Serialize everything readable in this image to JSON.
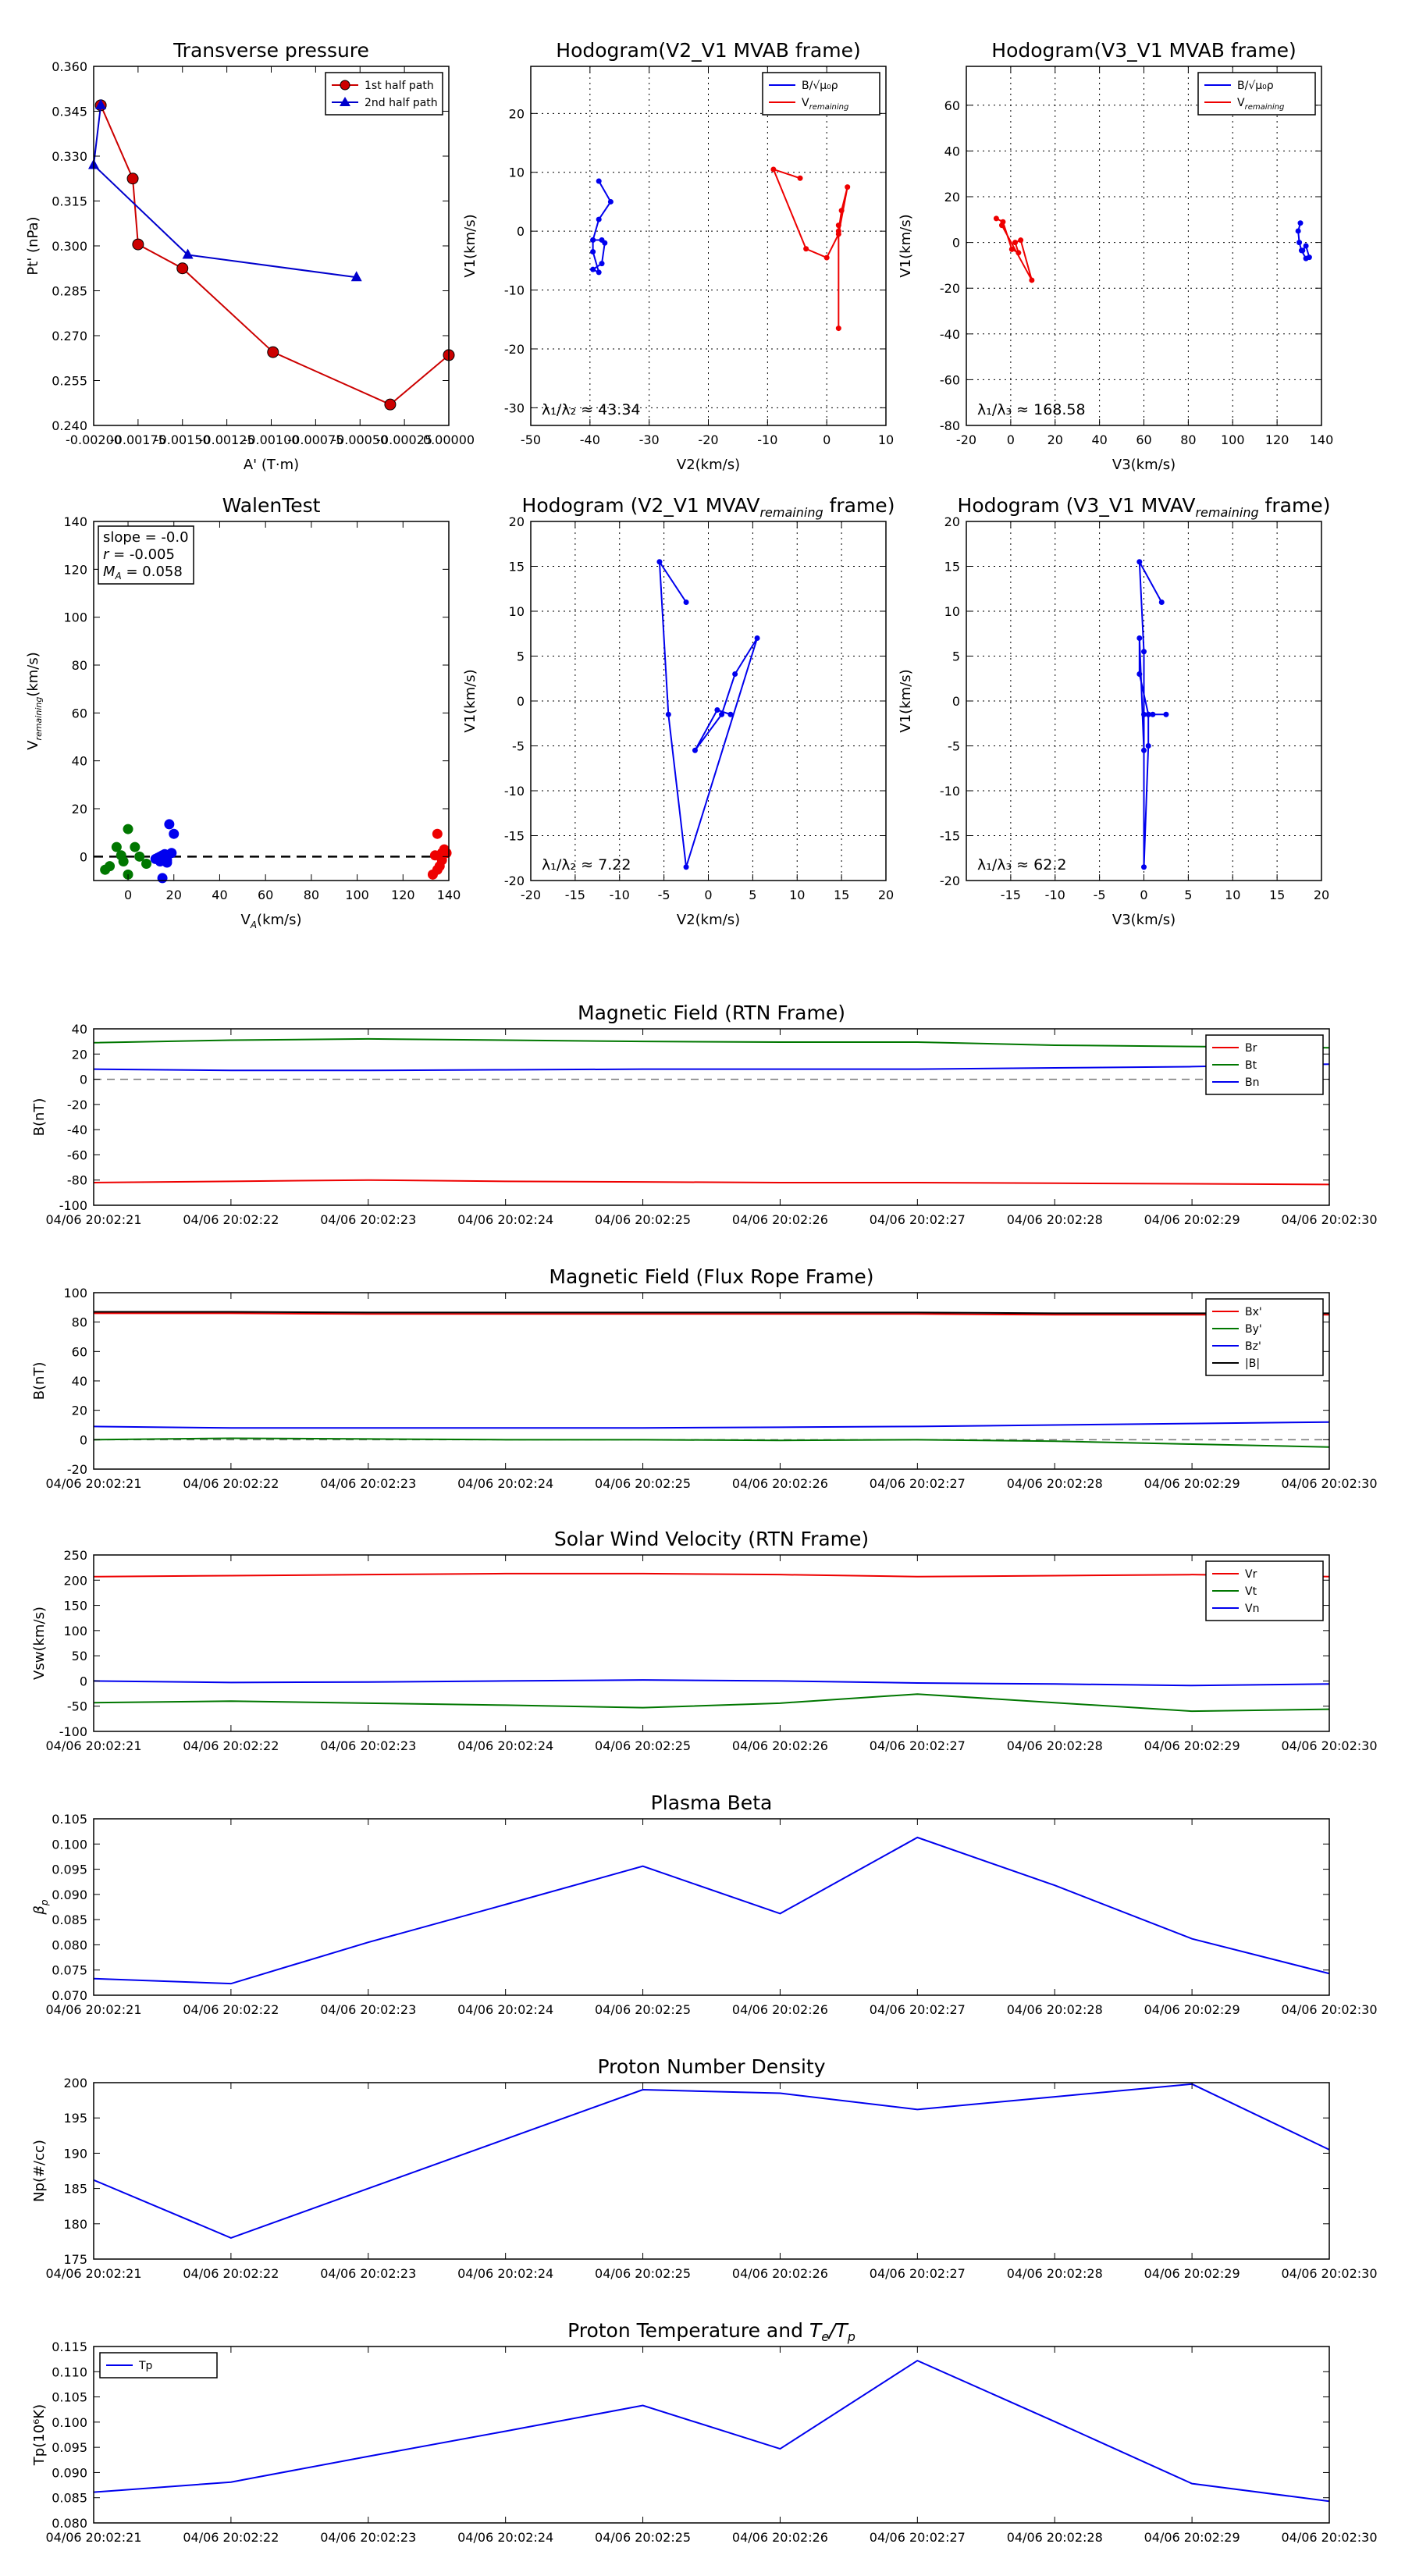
{
  "chart_data": [
    {
      "id": "tp",
      "type": "scatter",
      "title": "Transverse pressure",
      "xlabel": "A' (T·m)",
      "ylabel": "Pt' (nPa)",
      "xlim": [
        -0.002,
        0.0
      ],
      "ylim": [
        0.24,
        0.36
      ],
      "xticks": [
        -0.002,
        -0.00175,
        -0.0015,
        -0.00125,
        -0.001,
        -0.00075,
        -0.0005,
        -0.00025,
        0.0
      ],
      "xtick_labels": [
        "-0.00200",
        "-0.00175",
        "-0.00150",
        "-0.00125",
        "-0.00100",
        "-0.00075",
        "-0.00050",
        "-0.00025",
        "0.00000"
      ],
      "yticks": [
        0.24,
        0.255,
        0.27,
        0.285,
        0.3,
        0.315,
        0.33,
        0.345,
        0.36
      ],
      "ytick_labels": [
        "0.240",
        "0.255",
        "0.270",
        "0.285",
        "0.300",
        "0.315",
        "0.330",
        "0.345",
        "0.360"
      ],
      "legend": "top-right",
      "series": [
        {
          "name": "1st half path",
          "color": "#cc0000",
          "marker": "circle",
          "x": [
            -0.00196,
            -0.00178,
            -0.00175,
            -0.0015,
            -0.00099,
            -0.00033,
            0.0
          ],
          "y": [
            0.347,
            0.3225,
            0.3005,
            0.2925,
            0.2645,
            0.247,
            0.2635
          ]
        },
        {
          "name": "2nd half path",
          "color": "#0000cc",
          "marker": "triangle",
          "x": [
            -0.00196,
            -0.002,
            -0.00147,
            -0.00052
          ],
          "y": [
            0.347,
            0.327,
            0.297,
            0.2895
          ]
        }
      ]
    },
    {
      "id": "hv2b",
      "type": "line",
      "title": "Hodogram(V2_V1 MVAB frame)",
      "xlabel": "V2(km/s)",
      "ylabel": "V1(km/s)",
      "xlim": [
        -50,
        10
      ],
      "ylim": [
        -33,
        28
      ],
      "xticks": [
        -50,
        -40,
        -30,
        -20,
        -10,
        0,
        10
      ],
      "yticks": [
        -30,
        -20,
        -10,
        0,
        10,
        20
      ],
      "annotation": "λ₁/λ₂ ≈ 43.34",
      "legend": "top-right",
      "series": [
        {
          "name": "B/√μ₀ρ",
          "color": "#0000ee",
          "x": [
            -38.5,
            -36.5,
            -38.5,
            -39.5,
            -39.5,
            -38.5,
            -39.5,
            -38.0,
            -37.5,
            -38.0,
            -39.5
          ],
          "y": [
            8.5,
            5.0,
            2.0,
            -1.5,
            -3.5,
            -7.0,
            -6.5,
            -5.5,
            -2.0,
            -1.5,
            -1.5
          ]
        },
        {
          "name": "V_remaining",
          "color": "#ee0000",
          "x": [
            -4.5,
            -9.0,
            -3.5,
            0.0,
            2.0,
            3.5,
            2.5,
            2.0,
            2.0,
            2.0
          ],
          "y": [
            9.0,
            10.5,
            -3.0,
            -4.5,
            -0.5,
            7.5,
            3.5,
            0.0,
            1.0,
            -16.5
          ]
        }
      ]
    },
    {
      "id": "hv3b",
      "type": "line",
      "title": "Hodogram(V3_V1 MVAB frame)",
      "xlabel": "V3(km/s)",
      "ylabel": "V1(km/s)",
      "xlim": [
        -20,
        140
      ],
      "ylim": [
        -80,
        77
      ],
      "xticks": [
        -20,
        0,
        20,
        40,
        60,
        80,
        100,
        120,
        140
      ],
      "yticks": [
        -80,
        -60,
        -40,
        -20,
        0,
        20,
        40,
        60
      ],
      "annotation": "λ₁/λ₃ ≈ 168.58",
      "legend": "top-right",
      "series": [
        {
          "name": "B/√μ₀ρ",
          "color": "#0000ee",
          "x": [
            130.5,
            129.5,
            130.0,
            131.0,
            133.0,
            134.5,
            133.0,
            131.5
          ],
          "y": [
            8.5,
            5.0,
            0.0,
            -3.5,
            -7.0,
            -6.5,
            -1.5,
            -3.5
          ]
        },
        {
          "name": "V_remaining",
          "color": "#ee0000",
          "x": [
            -6.5,
            -3.5,
            0.5,
            3.5,
            2.0,
            4.5,
            9.5,
            -4.0
          ],
          "y": [
            10.5,
            9.0,
            -3.0,
            -4.5,
            0.0,
            1.0,
            -16.5,
            7.5
          ]
        }
      ]
    },
    {
      "id": "walen",
      "type": "scatter",
      "title": "WalenTest",
      "xlabel": "V_A(km/s)",
      "ylabel": "V_remaining(km/s)",
      "xlim": [
        -15,
        140
      ],
      "ylim": [
        -10,
        140
      ],
      "xticks": [
        0,
        20,
        40,
        60,
        80,
        100,
        120,
        140
      ],
      "yticks": [
        0,
        20,
        40,
        60,
        80,
        100,
        120,
        140
      ],
      "stats": [
        "slope = -0.0",
        "r = -0.005",
        "M_A = 0.058"
      ],
      "series": [
        {
          "name": "green",
          "color": "#007700",
          "x": [
            -10.0,
            -8.0,
            -5.0,
            0.0,
            3.0,
            -2.0,
            0.0,
            -3.0,
            5.0,
            8.0
          ],
          "y": [
            -5.5,
            -4.0,
            4.0,
            11.5,
            4.0,
            -2.0,
            -7.5,
            0.5,
            0.0,
            -3.0
          ]
        },
        {
          "name": "blue",
          "color": "#0000ee",
          "x": [
            12.0,
            14.0,
            15.0,
            16.0,
            18.0,
            20.0,
            17.0,
            19.0,
            13.0,
            15.0,
            17.0,
            14.0
          ],
          "y": [
            -1.0,
            -2.0,
            0.5,
            1.0,
            13.5,
            9.5,
            -1.5,
            1.5,
            -0.5,
            -9.0,
            -2.5,
            0.0
          ]
        },
        {
          "name": "red",
          "color": "#ee0000",
          "x": [
            133.0,
            134.0,
            135.0,
            136.0,
            137.0,
            138.0,
            139.0,
            135.0,
            137.0
          ],
          "y": [
            -7.5,
            0.5,
            9.5,
            -4.0,
            1.5,
            3.0,
            1.5,
            -5.5,
            -1.5
          ]
        }
      ]
    },
    {
      "id": "hv2v",
      "type": "line",
      "title": "Hodogram (V2_V1 MVAV_remaining frame)",
      "xlabel": "V2(km/s)",
      "ylabel": "V1(km/s)",
      "xlim": [
        -20,
        20
      ],
      "ylim": [
        -20,
        20
      ],
      "xticks": [
        -20,
        -15,
        -10,
        -5,
        0,
        5,
        10,
        15,
        20
      ],
      "yticks": [
        -20,
        -15,
        -10,
        -5,
        0,
        5,
        10,
        15,
        20
      ],
      "annotation": "λ₁/λ₂ ≈ 7.22",
      "series": [
        {
          "name": "",
          "color": "#0000ee",
          "x": [
            -2.5,
            -5.5,
            -4.5,
            -2.5,
            5.5,
            3.0,
            1.5,
            -1.5,
            1.0,
            2.5
          ],
          "y": [
            11.0,
            15.5,
            -1.5,
            -18.5,
            7.0,
            3.0,
            -1.5,
            -5.5,
            -1.0,
            -1.5
          ]
        }
      ]
    },
    {
      "id": "hv3v",
      "type": "line",
      "title": "Hodogram (V3_V1 MVAV_remaining frame)",
      "xlabel": "V3(km/s)",
      "ylabel": "V1(km/s)",
      "xlim": [
        -20,
        20
      ],
      "ylim": [
        -20,
        20
      ],
      "xticks": [
        -15,
        -10,
        -5,
        0,
        5,
        10,
        15,
        20
      ],
      "yticks": [
        -20,
        -15,
        -10,
        -5,
        0,
        5,
        10,
        15,
        20
      ],
      "annotation": "λ₁/λ₃ ≈ 62.2",
      "series": [
        {
          "name": "",
          "color": "#0000ee",
          "x": [
            2.0,
            -0.5,
            0.0,
            0.0,
            -0.5,
            -0.5,
            0.5,
            0.5,
            0.0,
            0.0,
            0.5,
            1.0,
            2.5
          ],
          "y": [
            11.0,
            15.5,
            5.5,
            -5.5,
            7.0,
            3.0,
            -1.5,
            -5.0,
            -18.5,
            -1.5,
            -1.5,
            -1.5,
            -1.5
          ]
        }
      ]
    },
    {
      "id": "bfield",
      "type": "line",
      "title": "Magnetic Field (RTN Frame)",
      "ylabel": "B(nT)",
      "ylim": [
        -100,
        40
      ],
      "yticks": [
        -100,
        -80,
        -60,
        -40,
        -20,
        0,
        20,
        40
      ],
      "xticklabels": [
        "04/06 20:02:21",
        "04/06 20:02:22",
        "04/06 20:02:23",
        "04/06 20:02:24",
        "04/06 20:02:25",
        "04/06 20:02:26",
        "04/06 20:02:27",
        "04/06 20:02:28",
        "04/06 20:02:29",
        "04/06 20:02:30"
      ],
      "zero_line": true,
      "legend": "top-right",
      "series": [
        {
          "name": "Br",
          "color": "#ee0000",
          "values": [
            -82,
            -81,
            -80,
            -81,
            -81.5,
            -82,
            -82,
            -82.5,
            -83,
            -83.5
          ]
        },
        {
          "name": "Bt",
          "color": "#007700",
          "values": [
            29,
            31,
            32,
            31,
            30,
            29.5,
            29.5,
            27,
            26,
            25
          ]
        },
        {
          "name": "Bn",
          "color": "#0000ee",
          "values": [
            8,
            7,
            7,
            7.5,
            8,
            8,
            8,
            9,
            10,
            12
          ]
        }
      ]
    },
    {
      "id": "bflux",
      "type": "line",
      "title": "Magnetic Field (Flux Rope Frame)",
      "ylabel": "B(nT)",
      "ylim": [
        -20,
        100
      ],
      "yticks": [
        -20,
        0,
        20,
        40,
        60,
        80,
        100
      ],
      "xticklabels": [
        "04/06 20:02:21",
        "04/06 20:02:22",
        "04/06 20:02:23",
        "04/06 20:02:24",
        "04/06 20:02:25",
        "04/06 20:02:26",
        "04/06 20:02:27",
        "04/06 20:02:28",
        "04/06 20:02:29",
        "04/06 20:02:30"
      ],
      "zero_line": true,
      "legend": "top-right",
      "series": [
        {
          "name": "Bx'",
          "color": "#ee0000",
          "values": [
            86,
            86,
            85.5,
            85.5,
            85.5,
            85.5,
            85.5,
            85,
            85,
            85
          ]
        },
        {
          "name": "By'",
          "color": "#007700",
          "values": [
            0,
            1,
            0.5,
            0,
            0,
            -0.5,
            0,
            -1,
            -3,
            -5
          ]
        },
        {
          "name": "Bz'",
          "color": "#0000ee",
          "values": [
            9,
            8,
            8,
            8,
            8,
            8.5,
            9,
            10,
            11,
            12
          ]
        },
        {
          "name": "|B|",
          "color": "#000000",
          "values": [
            87,
            87,
            86.5,
            86.5,
            86.5,
            86.5,
            86.5,
            86,
            86,
            86
          ]
        }
      ]
    },
    {
      "id": "vsw",
      "type": "line",
      "title": "Solar Wind Velocity (RTN Frame)",
      "ylabel": "Vsw(km/s)",
      "ylim": [
        -100,
        250
      ],
      "yticks": [
        -100,
        -50,
        0,
        50,
        100,
        150,
        200,
        250
      ],
      "xticklabels": [
        "04/06 20:02:21",
        "04/06 20:02:22",
        "04/06 20:02:23",
        "04/06 20:02:24",
        "04/06 20:02:25",
        "04/06 20:02:26",
        "04/06 20:02:27",
        "04/06 20:02:28",
        "04/06 20:02:29",
        "04/06 20:02:30"
      ],
      "legend": "top-right",
      "series": [
        {
          "name": "Vr",
          "color": "#ee0000",
          "values": [
            207,
            209,
            211,
            213,
            213,
            211,
            207,
            209,
            211,
            207
          ]
        },
        {
          "name": "Vt",
          "color": "#007700",
          "values": [
            -43,
            -40,
            -44,
            -48,
            -53,
            -44,
            -26,
            -43,
            -60,
            -56
          ]
        },
        {
          "name": "Vn",
          "color": "#0000ee",
          "values": [
            0,
            -3,
            -2,
            0,
            2,
            0,
            -4,
            -6,
            -9,
            -6
          ]
        }
      ]
    },
    {
      "id": "beta",
      "type": "line",
      "title": "Plasma Beta",
      "ylabel": "β_p",
      "ylim": [
        0.07,
        0.105
      ],
      "yticks": [
        0.07,
        0.075,
        0.08,
        0.085,
        0.09,
        0.095,
        0.1,
        0.105
      ],
      "ytick_labels": [
        "0.070",
        "0.075",
        "0.080",
        "0.085",
        "0.090",
        "0.095",
        "0.100",
        "0.105"
      ],
      "xticklabels": [
        "04/06 20:02:21",
        "04/06 20:02:22",
        "04/06 20:02:23",
        "04/06 20:02:24",
        "04/06 20:02:25",
        "04/06 20:02:26",
        "04/06 20:02:27",
        "04/06 20:02:28",
        "04/06 20:02:29",
        "04/06 20:02:30"
      ],
      "series": [
        {
          "name": "",
          "color": "#0000ee",
          "values": [
            0.0733,
            0.0723,
            0.0805,
            0.088,
            0.0956,
            0.0862,
            0.1013,
            0.0918,
            0.0812,
            0.0743
          ]
        }
      ]
    },
    {
      "id": "np",
      "type": "line",
      "title": "Proton Number Density",
      "ylabel": "Np(#/cc)",
      "ylim": [
        175,
        200
      ],
      "yticks": [
        175,
        180,
        185,
        190,
        195,
        200
      ],
      "xticklabels": [
        "04/06 20:02:21",
        "04/06 20:02:22",
        "04/06 20:02:23",
        "04/06 20:02:24",
        "04/06 20:02:25",
        "04/06 20:02:26",
        "04/06 20:02:27",
        "04/06 20:02:28",
        "04/06 20:02:29",
        "04/06 20:02:30"
      ],
      "series": [
        {
          "name": "",
          "color": "#0000ee",
          "values": [
            186.2,
            178.0,
            185.0,
            192.0,
            199.0,
            198.5,
            196.2,
            198.0,
            199.8,
            190.5
          ]
        }
      ]
    },
    {
      "id": "tpr",
      "type": "line",
      "title": "Proton Temperature and T_e/T_p",
      "ylabel": "Tp(10⁶K)",
      "ylim": [
        0.08,
        0.115
      ],
      "yticks": [
        0.08,
        0.085,
        0.09,
        0.095,
        0.1,
        0.105,
        0.11,
        0.115
      ],
      "ytick_labels": [
        "0.080",
        "0.085",
        "0.090",
        "0.095",
        "0.100",
        "0.105",
        "0.110",
        "0.115"
      ],
      "xticklabels": [
        "04/06 20:02:21",
        "04/06 20:02:22",
        "04/06 20:02:23",
        "04/06 20:02:24",
        "04/06 20:02:25",
        "04/06 20:02:26",
        "04/06 20:02:27",
        "04/06 20:02:28",
        "04/06 20:02:29",
        "04/06 20:02:30"
      ],
      "legend": "top-left",
      "series": [
        {
          "name": "Tp",
          "color": "#0000ee",
          "values": [
            0.0861,
            0.0881,
            0.0932,
            0.0982,
            0.1033,
            0.0947,
            0.1122,
            0.1001,
            0.0878,
            0.0843
          ]
        }
      ]
    }
  ]
}
